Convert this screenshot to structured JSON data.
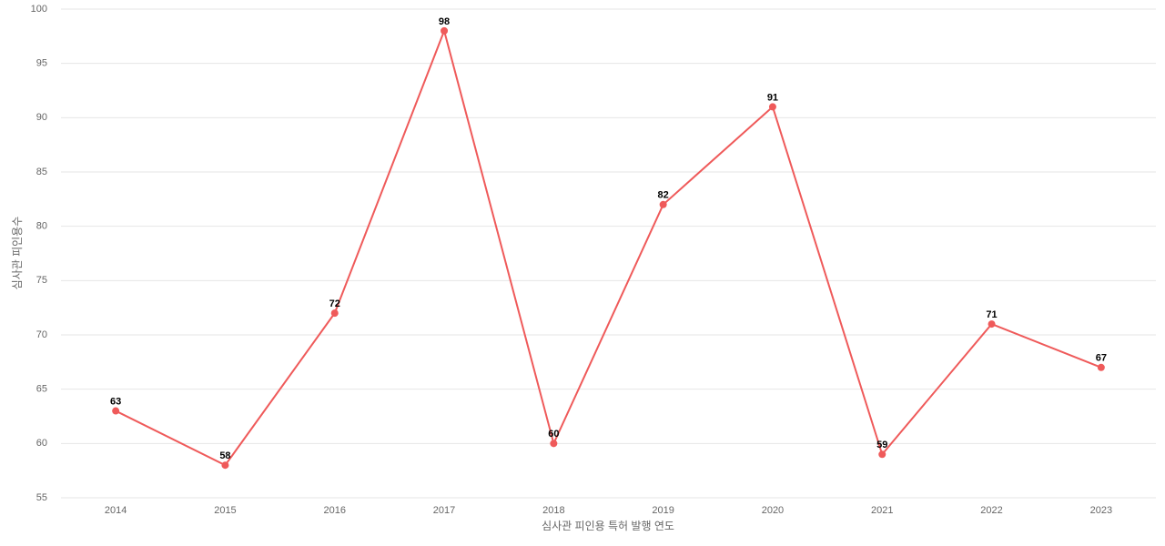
{
  "chart_data": {
    "type": "line",
    "x_label": "심사관 피인용 특허 발행 연도",
    "y_label": "심사관 피인용수",
    "categories": [
      "2014",
      "2015",
      "2016",
      "2017",
      "2018",
      "2019",
      "2020",
      "2021",
      "2022",
      "2023"
    ],
    "values": [
      63,
      58,
      72,
      98,
      60,
      82,
      91,
      59,
      71,
      67
    ],
    "color": "#ef5a5a",
    "ylim": [
      55,
      100
    ],
    "yticks": [
      55,
      60,
      65,
      70,
      75,
      80,
      85,
      90,
      95,
      100
    ],
    "grid": true
  }
}
